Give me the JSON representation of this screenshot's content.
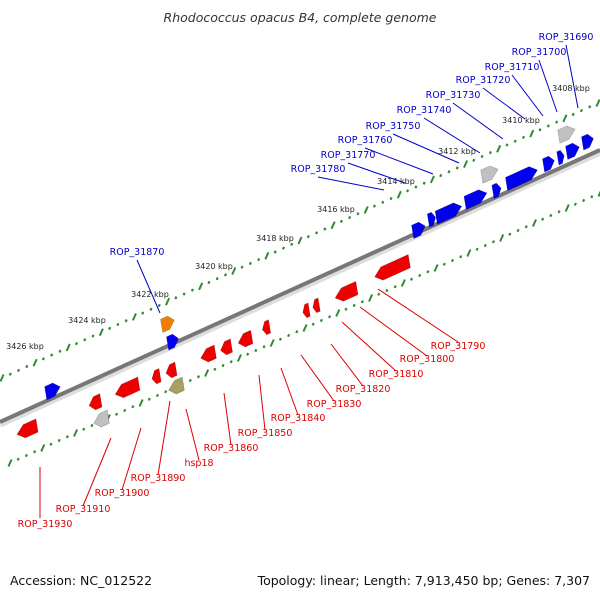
{
  "title": "Rhodococcus opacus B4, complete genome",
  "colors": {
    "top_strand": "#0000ee",
    "bottom_strand": "#ee0000",
    "top_label": "#0000cc",
    "bottom_label": "#dd0000",
    "backbone": "#777777",
    "ticks": "#2e8b2e",
    "highlight_orange": "#ee7f00",
    "highlight_olive": "#a8a060",
    "pseudo_grey": "#c0c0c0"
  },
  "kbp_labels": [
    "3408 kbp",
    "3410 kbp",
    "3412 kbp",
    "3414 kbp",
    "3416 kbp",
    "3418 kbp",
    "3420 kbp",
    "3422 kbp",
    "3424 kbp",
    "3426 kbp"
  ],
  "top_genes": [
    "ROP_31690",
    "ROP_31700",
    "ROP_31710",
    "ROP_31720",
    "ROP_31730",
    "ROP_31740",
    "ROP_31750",
    "ROP_31760",
    "ROP_31770",
    "ROP_31780",
    "ROP_31870"
  ],
  "bottom_genes": [
    "ROP_31790",
    "ROP_31800",
    "ROP_31810",
    "ROP_31820",
    "ROP_31830",
    "ROP_31840",
    "ROP_31850",
    "ROP_31860",
    "hsp18",
    "ROP_31890",
    "ROP_31900",
    "ROP_31910",
    "ROP_31930"
  ],
  "footer": {
    "accession": "Accession: NC_012522",
    "summary": "Topology: linear; Length: 7,913,450 bp; Genes: 7,307"
  }
}
